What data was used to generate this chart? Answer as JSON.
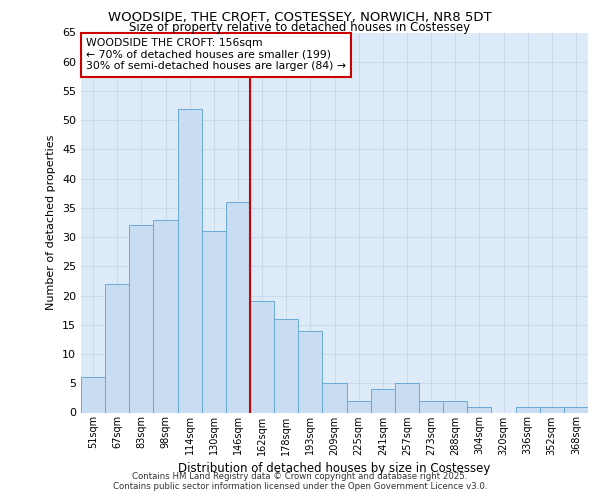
{
  "title_line1": "WOODSIDE, THE CROFT, COSTESSEY, NORWICH, NR8 5DT",
  "title_line2": "Size of property relative to detached houses in Costessey",
  "xlabel": "Distribution of detached houses by size in Costessey",
  "ylabel": "Number of detached properties",
  "categories": [
    "51sqm",
    "67sqm",
    "83sqm",
    "98sqm",
    "114sqm",
    "130sqm",
    "146sqm",
    "162sqm",
    "178sqm",
    "193sqm",
    "209sqm",
    "225sqm",
    "241sqm",
    "257sqm",
    "273sqm",
    "288sqm",
    "304sqm",
    "320sqm",
    "336sqm",
    "352sqm",
    "368sqm"
  ],
  "values": [
    6,
    22,
    32,
    33,
    52,
    31,
    36,
    19,
    16,
    14,
    5,
    2,
    4,
    5,
    2,
    2,
    1,
    0,
    1,
    1,
    1
  ],
  "bar_color": "#c9ddf2",
  "bar_edge_color": "#6aaad4",
  "vline_color": "#cc0000",
  "annotation_text": "WOODSIDE THE CROFT: 156sqm\n← 70% of detached houses are smaller (199)\n30% of semi-detached houses are larger (84) →",
  "annotation_box_color": "#ffffff",
  "annotation_box_edge": "#cc0000",
  "grid_color": "#c8d8e8",
  "background_color": "#ddeaf7",
  "ylim": [
    0,
    65
  ],
  "yticks": [
    0,
    5,
    10,
    15,
    20,
    25,
    30,
    35,
    40,
    45,
    50,
    55,
    60,
    65
  ],
  "footer_line1": "Contains HM Land Registry data © Crown copyright and database right 2025.",
  "footer_line2": "Contains public sector information licensed under the Open Government Licence v3.0."
}
